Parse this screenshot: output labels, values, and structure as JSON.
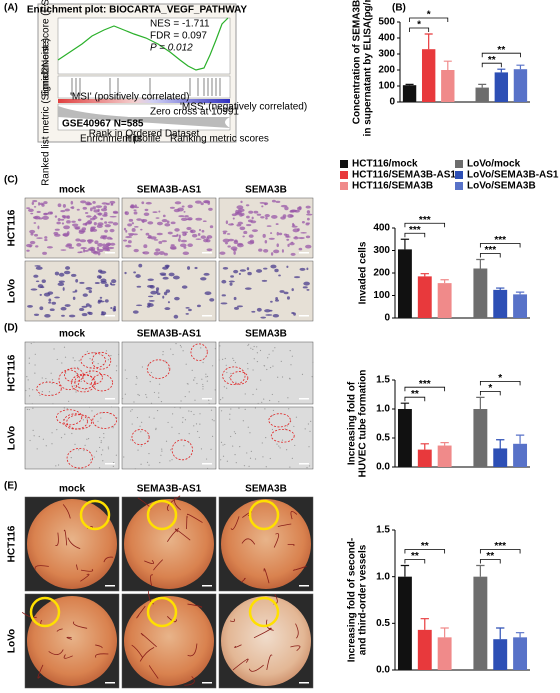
{
  "panel_labels": [
    "(A)",
    "(B)",
    "(C)",
    "(D)",
    "(E)"
  ],
  "gsea": {
    "title": "Enrichment plot: BIOCARTA_VEGF_PATHWAY",
    "stats": [
      "NES = -1.711",
      "FDR = 0.097",
      "P = 0.012"
    ],
    "dataset": "GSE40967 N=585",
    "y_label_top": "Enrichment score (ES)",
    "y_label_bottom": "Ranked list metric (Signal2Noise)",
    "x_label": "Rank in Ordered Dataset",
    "zero_cross": "Zero cross at 10991",
    "pos_label": "'MSI' (positively correlated)",
    "neg_label": "'MSS' (negatively correlated)",
    "legend": [
      "Enrichment profile",
      "Hits",
      "Ranking metric scores"
    ]
  },
  "legend": {
    "names": [
      "HCT116/mock",
      "HCT116/SEMA3B-AS1",
      "HCT116/SEMA3B",
      "LoVo/mock",
      "LoVo/SEMA3B-AS1",
      "LoVo/SEMA3B"
    ],
    "colors": [
      "#111111",
      "#e8393c",
      "#f08a8a",
      "#6d6d6d",
      "#2d4fb5",
      "#5872c8"
    ]
  },
  "image_panels": [
    {
      "columns": [
        "mock",
        "SEMA3B-AS1",
        "SEMA3B"
      ],
      "rows": [
        "HCT116",
        "LoVo"
      ]
    },
    {
      "columns": [
        "mock",
        "SEMA3B-AS1",
        "SEMA3B"
      ],
      "rows": [
        "HCT116",
        "LoVo"
      ]
    },
    {
      "columns": [
        "mock",
        "SEMA3B-AS1",
        "SEMA3B"
      ],
      "rows": [
        "HCT116",
        "LoVo"
      ]
    }
  ],
  "chart_data": [
    {
      "type": "bar",
      "y_label": [
        "Concentration of SEMA3B",
        "in supernatant by ELISA(pg/ml)"
      ],
      "values": [
        105,
        330,
        200,
        90,
        185,
        205
      ],
      "errors": [
        5,
        95,
        55,
        20,
        20,
        25
      ],
      "ylim": [
        0,
        500
      ],
      "yticks": [
        0,
        100,
        200,
        300,
        400,
        500
      ],
      "annotations": [
        {
          "label": "*",
          "from": 0,
          "to": 1
        },
        {
          "label": "*",
          "from": 0,
          "to": 2
        },
        {
          "label": "**",
          "from": 3,
          "to": 4
        },
        {
          "label": "**",
          "from": 3,
          "to": 5
        }
      ]
    },
    {
      "type": "bar",
      "y_label": [
        "Invaded cells"
      ],
      "values": [
        305,
        185,
        155,
        220,
        125,
        105
      ],
      "errors": [
        45,
        12,
        15,
        40,
        8,
        10
      ],
      "ylim": [
        0,
        400
      ],
      "yticks": [
        0,
        100,
        200,
        300,
        400
      ],
      "annotations": [
        {
          "label": "***",
          "from": 0,
          "to": 1
        },
        {
          "label": "***",
          "from": 0,
          "to": 2
        },
        {
          "label": "***",
          "from": 3,
          "to": 4
        },
        {
          "label": "***",
          "from": 3,
          "to": 5
        }
      ]
    },
    {
      "type": "bar",
      "y_label": [
        "Increasing fold of",
        "HUVEC tube formation"
      ],
      "values": [
        1.0,
        0.3,
        0.37,
        1.0,
        0.32,
        0.4
      ],
      "errors": [
        0.1,
        0.1,
        0.05,
        0.2,
        0.15,
        0.15
      ],
      "ylim": [
        0,
        1.5
      ],
      "yticks": [
        {
          "value": 0,
          "label": "0.0"
        },
        0.5,
        {
          "value": 1,
          "label": "1.0"
        },
        1.5
      ],
      "annotations": [
        {
          "label": "**",
          "from": 0,
          "to": 1
        },
        {
          "label": "***",
          "from": 0,
          "to": 2
        },
        {
          "label": "*",
          "from": 3,
          "to": 4
        },
        {
          "label": "*",
          "from": 3,
          "to": 5
        }
      ]
    },
    {
      "type": "bar",
      "y_label": [
        "Increasing fold of second-",
        "and third-order vessels"
      ],
      "values": [
        1.0,
        0.43,
        0.35,
        1.0,
        0.33,
        0.35
      ],
      "errors": [
        0.12,
        0.12,
        0.1,
        0.12,
        0.12,
        0.05
      ],
      "ylim": [
        0,
        1.5
      ],
      "yticks": [
        {
          "value": 0,
          "label": "0.0"
        },
        0.5,
        {
          "value": 1,
          "label": "1.0"
        },
        1.5
      ],
      "annotations": [
        {
          "label": "**",
          "from": 0,
          "to": 1
        },
        {
          "label": "**",
          "from": 0,
          "to": 2
        },
        {
          "label": "**",
          "from": 3,
          "to": 4
        },
        {
          "label": "***",
          "from": 3,
          "to": 5
        }
      ]
    }
  ]
}
